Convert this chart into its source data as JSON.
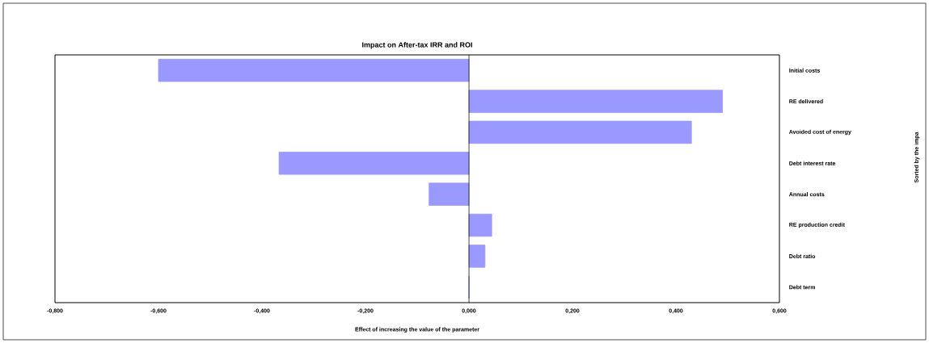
{
  "chart_data": {
    "type": "bar",
    "orientation": "horizontal",
    "title": "Impact on After-tax IRR and ROI",
    "xlabel": "Effect of increasing the value of the parameter",
    "annotations": [
      "Sorted by the impa"
    ],
    "categories": [
      "Initial costs",
      "RE delivered",
      "Avoided cost of energy",
      "Debt interest rate",
      "Annual costs",
      "RE production credit",
      "Debt ratio",
      "Debt term"
    ],
    "values": [
      -0.6,
      0.49,
      0.43,
      -0.367,
      -0.077,
      0.044,
      0.031,
      0
    ],
    "color": "#9999ff",
    "xlim": [
      -0.8,
      0.6
    ],
    "xticks": [
      {
        "value": -0.8,
        "label": "-0,800"
      },
      {
        "value": -0.6,
        "label": "-0,600"
      },
      {
        "value": -0.4,
        "label": "-0,400"
      },
      {
        "value": -0.2,
        "label": "-0,200"
      },
      {
        "value": 0,
        "label": "0,000"
      },
      {
        "value": 0.2,
        "label": "0,200"
      },
      {
        "value": 0.4,
        "label": "0,400"
      },
      {
        "value": 0.6,
        "label": "0,600"
      }
    ]
  }
}
